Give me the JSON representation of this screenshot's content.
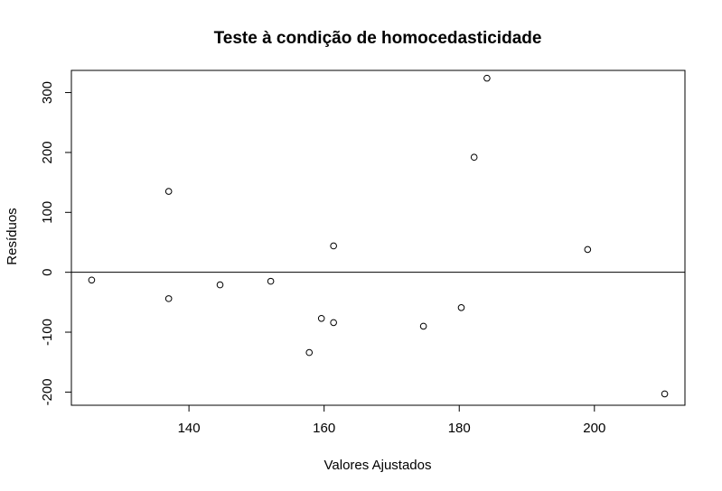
{
  "chart_data": {
    "type": "scatter",
    "title": "Teste à condição de homocedasticidade",
    "xlabel": "Valores Ajustados",
    "ylabel": "Resíduos",
    "xlim": [
      122.6,
      213.4
    ],
    "ylim": [
      -222,
      337
    ],
    "x_ticks": [
      140,
      160,
      180,
      200
    ],
    "y_ticks": [
      -200,
      -100,
      0,
      100,
      200,
      300
    ],
    "reference_line_y": 0,
    "grid": false,
    "legend": "none",
    "points": [
      {
        "x": 125.6,
        "y": -13
      },
      {
        "x": 137.0,
        "y": 135
      },
      {
        "x": 137.0,
        "y": -44
      },
      {
        "x": 144.6,
        "y": -21
      },
      {
        "x": 152.1,
        "y": -15
      },
      {
        "x": 157.8,
        "y": -134
      },
      {
        "x": 159.6,
        "y": -77
      },
      {
        "x": 161.4,
        "y": 44
      },
      {
        "x": 161.4,
        "y": -84
      },
      {
        "x": 174.7,
        "y": -90
      },
      {
        "x": 180.3,
        "y": -59
      },
      {
        "x": 182.2,
        "y": 192
      },
      {
        "x": 184.1,
        "y": 324
      },
      {
        "x": 199.0,
        "y": 38
      },
      {
        "x": 210.4,
        "y": -203
      }
    ]
  }
}
